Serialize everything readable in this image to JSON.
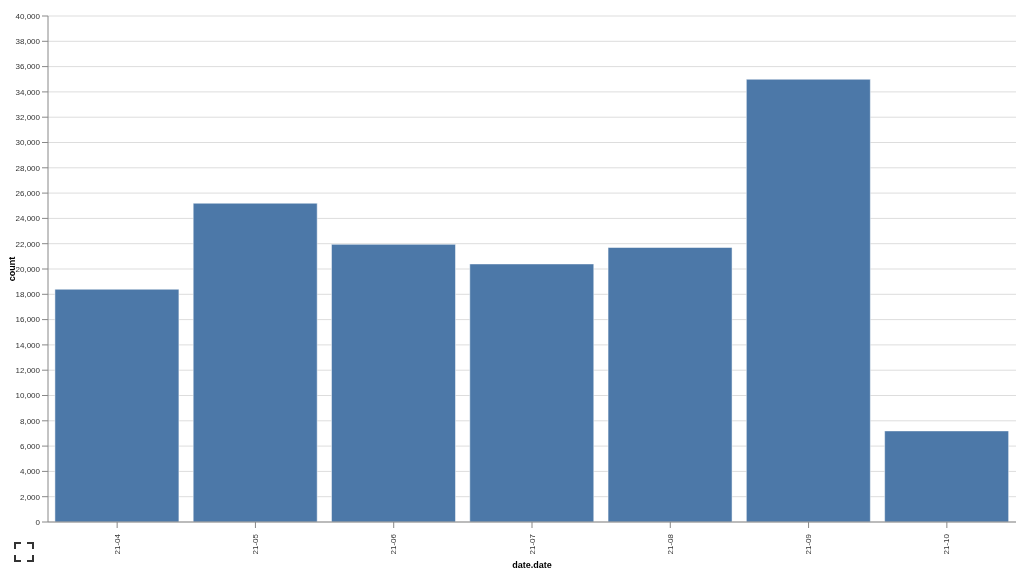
{
  "chart_data": {
    "type": "bar",
    "xlabel": "date.date",
    "ylabel": "count",
    "categories": [
      "21-04",
      "21-05",
      "21-06",
      "21-07",
      "21-08",
      "21-09",
      "21-10"
    ],
    "values": [
      18400,
      25200,
      21950,
      20400,
      21700,
      35000,
      7200
    ],
    "color": "#4c78a8",
    "ylim": [
      0,
      40000
    ],
    "yticks": [
      {
        "value": 0,
        "label": "0"
      },
      {
        "value": 2000,
        "label": "2,000"
      },
      {
        "value": 4000,
        "label": "4,000"
      },
      {
        "value": 6000,
        "label": "6,000"
      },
      {
        "value": 8000,
        "label": "8,000"
      },
      {
        "value": 10000,
        "label": "10,000"
      },
      {
        "value": 12000,
        "label": "12,000"
      },
      {
        "value": 14000,
        "label": "14,000"
      },
      {
        "value": 16000,
        "label": "16,000"
      },
      {
        "value": 18000,
        "label": "18,000"
      },
      {
        "value": 20000,
        "label": "20,000"
      },
      {
        "value": 22000,
        "label": "22,000"
      },
      {
        "value": 24000,
        "label": "24,000"
      },
      {
        "value": 26000,
        "label": "26,000"
      },
      {
        "value": 28000,
        "label": "28,000"
      },
      {
        "value": 30000,
        "label": "30,000"
      },
      {
        "value": 32000,
        "label": "32,000"
      },
      {
        "value": 34000,
        "label": "34,000"
      },
      {
        "value": 36000,
        "label": "36,000"
      },
      {
        "value": 38000,
        "label": "38,000"
      },
      {
        "value": 40000,
        "label": "40,000"
      }
    ],
    "grid": "y"
  }
}
